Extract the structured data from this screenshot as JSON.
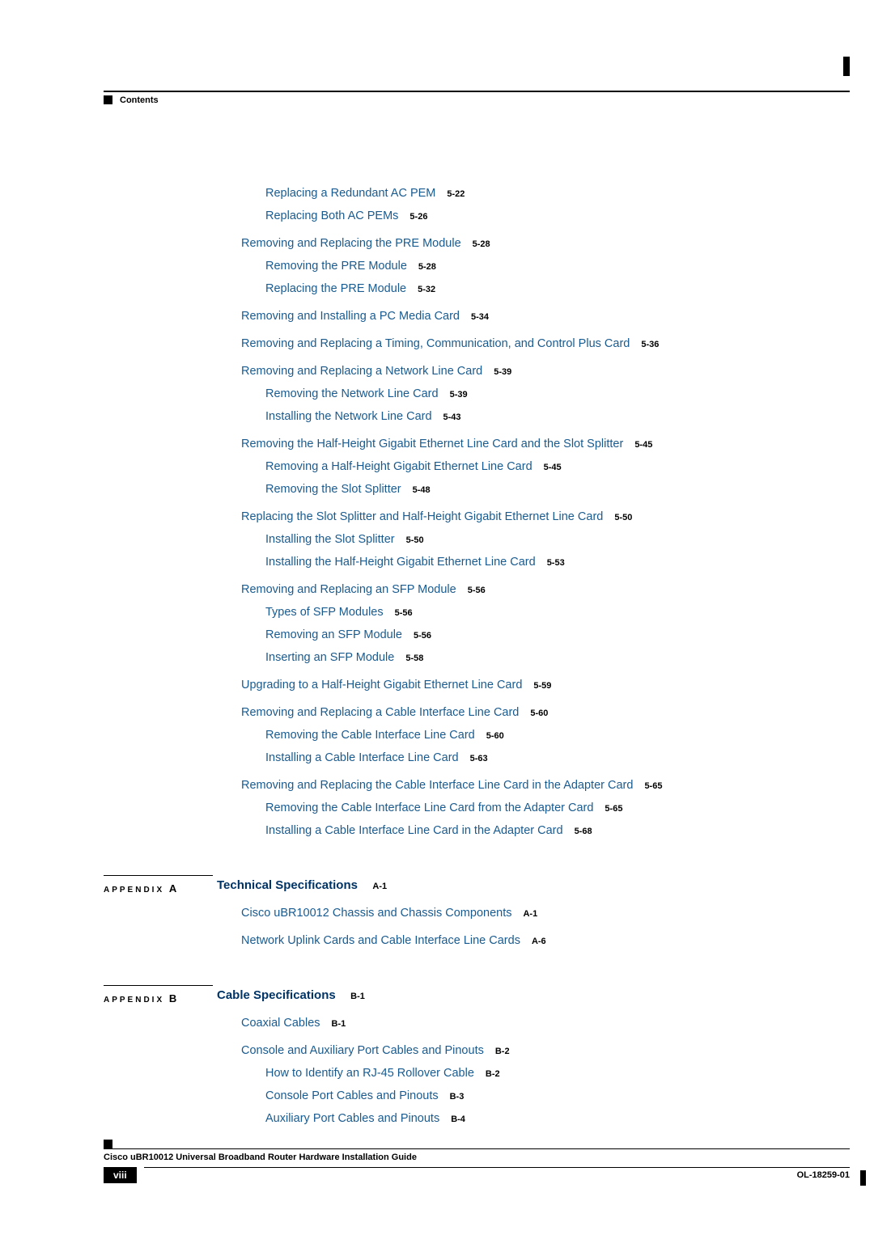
{
  "header": {
    "label": "Contents"
  },
  "toc": [
    {
      "level": 2,
      "text": "Replacing a Redundant AC PEM",
      "page": "5-22",
      "gap": false
    },
    {
      "level": 2,
      "text": "Replacing Both AC PEMs",
      "page": "5-26",
      "gap": false
    },
    {
      "level": 1,
      "text": "Removing and Replacing the PRE Module",
      "page": "5-28",
      "gap": true
    },
    {
      "level": 2,
      "text": "Removing the PRE Module",
      "page": "5-28",
      "gap": false
    },
    {
      "level": 2,
      "text": "Replacing the PRE Module",
      "page": "5-32",
      "gap": false
    },
    {
      "level": 1,
      "text": "Removing and Installing a PC Media Card",
      "page": "5-34",
      "gap": true
    },
    {
      "level": 1,
      "text": "Removing and Replacing a Timing, Communication, and Control Plus Card",
      "page": "5-36",
      "gap": true
    },
    {
      "level": 1,
      "text": "Removing and Replacing a Network Line Card",
      "page": "5-39",
      "gap": true
    },
    {
      "level": 2,
      "text": "Removing the Network Line Card",
      "page": "5-39",
      "gap": false
    },
    {
      "level": 2,
      "text": "Installing the Network Line Card",
      "page": "5-43",
      "gap": false
    },
    {
      "level": 1,
      "text": "Removing the Half-Height Gigabit Ethernet Line Card and the Slot Splitter",
      "page": "5-45",
      "gap": true
    },
    {
      "level": 2,
      "text": "Removing a Half-Height Gigabit Ethernet Line Card",
      "page": "5-45",
      "gap": false
    },
    {
      "level": 2,
      "text": "Removing the Slot Splitter",
      "page": "5-48",
      "gap": false
    },
    {
      "level": 1,
      "text": "Replacing the Slot Splitter and Half-Height Gigabit Ethernet Line Card",
      "page": "5-50",
      "gap": true
    },
    {
      "level": 2,
      "text": "Installing the Slot Splitter",
      "page": "5-50",
      "gap": false
    },
    {
      "level": 2,
      "text": "Installing the Half-Height Gigabit Ethernet Line Card",
      "page": "5-53",
      "gap": false
    },
    {
      "level": 1,
      "text": "Removing and Replacing an SFP Module",
      "page": "5-56",
      "gap": true
    },
    {
      "level": 2,
      "text": "Types of SFP Modules",
      "page": "5-56",
      "gap": false
    },
    {
      "level": 2,
      "text": "Removing an SFP Module",
      "page": "5-56",
      "gap": false
    },
    {
      "level": 2,
      "text": "Inserting an SFP Module",
      "page": "5-58",
      "gap": false
    },
    {
      "level": 1,
      "text": "Upgrading to a Half-Height Gigabit Ethernet Line Card",
      "page": "5-59",
      "gap": true
    },
    {
      "level": 1,
      "text": "Removing and Replacing a Cable Interface Line Card",
      "page": "5-60",
      "gap": true
    },
    {
      "level": 2,
      "text": "Removing the Cable Interface Line Card",
      "page": "5-60",
      "gap": false
    },
    {
      "level": 2,
      "text": "Installing a Cable Interface Line Card",
      "page": "5-63",
      "gap": false
    },
    {
      "level": 1,
      "text": "Removing and Replacing the Cable Interface Line Card in the Adapter Card",
      "page": "5-65",
      "gap": true
    },
    {
      "level": 2,
      "text": "Removing the Cable Interface Line Card from the Adapter Card",
      "page": "5-65",
      "gap": false
    },
    {
      "level": 2,
      "text": "Installing a Cable Interface Line Card in the Adapter Card",
      "page": "5-68",
      "gap": false
    }
  ],
  "appendixA": {
    "label": "APPENDIX",
    "letter": "A",
    "title": "Technical Specifications",
    "titlePage": "A-1",
    "items": [
      {
        "level": 1,
        "text": "Cisco uBR10012 Chassis and Chassis Components",
        "page": "A-1",
        "gap": true
      },
      {
        "level": 1,
        "text": "Network Uplink Cards and Cable Interface Line Cards",
        "page": "A-6",
        "gap": true
      }
    ]
  },
  "appendixB": {
    "label": "APPENDIX",
    "letter": "B",
    "title": "Cable Specifications",
    "titlePage": "B-1",
    "items": [
      {
        "level": 1,
        "text": "Coaxial Cables",
        "page": "B-1",
        "gap": true
      },
      {
        "level": 1,
        "text": "Console and Auxiliary Port Cables and Pinouts",
        "page": "B-2",
        "gap": true
      },
      {
        "level": 2,
        "text": "How to Identify an RJ-45 Rollover Cable",
        "page": "B-2",
        "gap": false
      },
      {
        "level": 2,
        "text": "Console Port Cables and Pinouts",
        "page": "B-3",
        "gap": false
      },
      {
        "level": 2,
        "text": "Auxiliary Port Cables and Pinouts",
        "page": "B-4",
        "gap": false
      }
    ]
  },
  "footer": {
    "title": "Cisco uBR10012 Universal Broadband Router Hardware Installation Guide",
    "pageNum": "viii",
    "docId": "OL-18259-01"
  }
}
